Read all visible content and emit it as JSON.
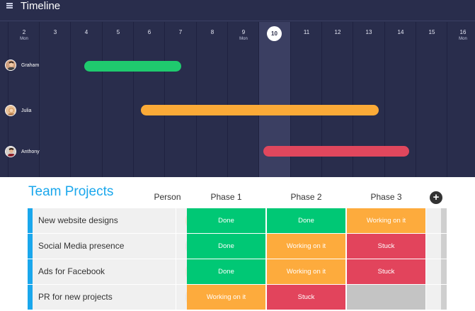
{
  "timeline": {
    "title": "Timeline",
    "today": "10",
    "days": [
      {
        "num": "2",
        "wd": "Mon"
      },
      {
        "num": "3",
        "wd": ""
      },
      {
        "num": "4",
        "wd": ""
      },
      {
        "num": "5",
        "wd": ""
      },
      {
        "num": "6",
        "wd": ""
      },
      {
        "num": "7",
        "wd": ""
      },
      {
        "num": "8",
        "wd": ""
      },
      {
        "num": "9",
        "wd": "Mon"
      },
      {
        "num": "10",
        "wd": ""
      },
      {
        "num": "11",
        "wd": ""
      },
      {
        "num": "12",
        "wd": ""
      },
      {
        "num": "13",
        "wd": ""
      },
      {
        "num": "14",
        "wd": ""
      },
      {
        "num": "15",
        "wd": ""
      },
      {
        "num": "16",
        "wd": "Mon"
      }
    ],
    "people": [
      {
        "name": "Graham",
        "bar_color": "#1fca6e"
      },
      {
        "name": "Julia",
        "bar_color": "#fbaa37"
      },
      {
        "name": "Anthony",
        "bar_color": "#e0475d"
      }
    ]
  },
  "board": {
    "title": "Team Projects",
    "columns": {
      "person": "Person",
      "phase1": "Phase 1",
      "phase2": "Phase 2",
      "phase3": "Phase 3"
    },
    "rows": [
      {
        "name": "New website designs",
        "phase1": "Done",
        "phase2": "Done",
        "phase3": "Working on it"
      },
      {
        "name": "Social Media presence",
        "phase1": "Done",
        "phase2": "Working on it",
        "phase3": "Stuck"
      },
      {
        "name": "Ads for Facebook",
        "phase1": "Done",
        "phase2": "Working on it",
        "phase3": "Stuck"
      },
      {
        "name": "PR for new projects",
        "phase1": "Working on it",
        "phase2": "Stuck",
        "phase3": ""
      }
    ],
    "status_colors": {
      "Done": "#00c875",
      "Working on it": "#fdab3d",
      "Stuck": "#e2445c",
      "": "#c4c4c4"
    }
  }
}
